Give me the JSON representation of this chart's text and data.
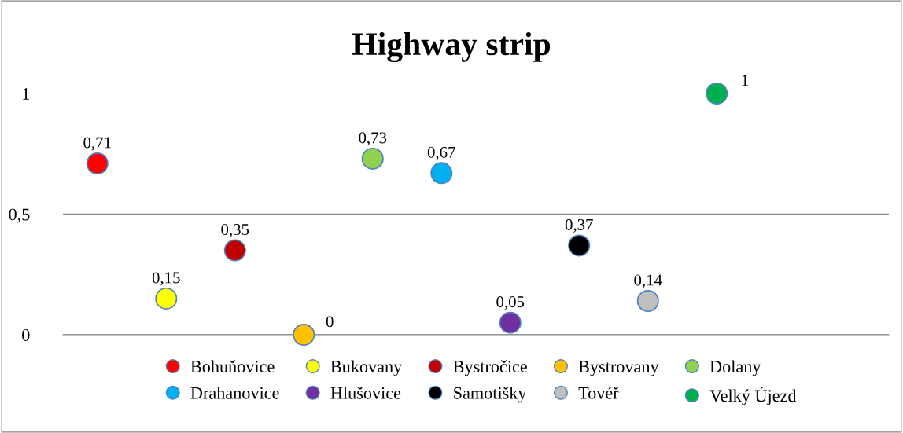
{
  "chart_data": {
    "type": "scatter",
    "title": "Highway strip",
    "categories": [
      null,
      null,
      null,
      null,
      null,
      null,
      null,
      null,
      null,
      null,
      null,
      null
    ],
    "ylim": [
      0,
      1
    ],
    "yticks": [
      0,
      {
        "value": 0.5,
        "label": "0,5"
      },
      1
    ],
    "grid": "y",
    "legend": "bottom",
    "marker": "circle",
    "tick_labels": "y",
    "series": [
      {
        "name": "Bohuňovice",
        "color": "#ff0000",
        "values": [
          0.71,
          null,
          null,
          null,
          null,
          null,
          null,
          null,
          null,
          null,
          null,
          null
        ],
        "value_labels": [
          "0,71",
          null,
          null,
          null,
          null,
          null,
          null,
          null,
          null,
          null,
          null,
          null
        ]
      },
      {
        "name": "Bukovany",
        "color": "#ffff00",
        "values": [
          null,
          0.15,
          null,
          null,
          null,
          null,
          null,
          null,
          null,
          null,
          null,
          null
        ],
        "value_labels": [
          null,
          "0,15",
          null,
          null,
          null,
          null,
          null,
          null,
          null,
          null,
          null,
          null
        ]
      },
      {
        "name": "Bystročice",
        "color": "#c00000",
        "values": [
          null,
          null,
          0.35,
          null,
          null,
          null,
          null,
          null,
          null,
          null,
          null,
          null
        ],
        "value_labels": [
          null,
          null,
          "0,35",
          null,
          null,
          null,
          null,
          null,
          null,
          null,
          null,
          null
        ]
      },
      {
        "name": "Bystrovany",
        "color": "#ffc000",
        "values": [
          null,
          null,
          null,
          0,
          null,
          null,
          null,
          null,
          null,
          null,
          null,
          null
        ],
        "value_labels": [
          null,
          null,
          null,
          "0",
          null,
          null,
          null,
          null,
          null,
          null,
          null,
          null
        ]
      },
      {
        "name": "Dolany",
        "color": "#92d050",
        "values": [
          null,
          null,
          null,
          null,
          0.73,
          null,
          null,
          null,
          null,
          null,
          null,
          null
        ],
        "value_labels": [
          null,
          null,
          null,
          null,
          "0,73",
          null,
          null,
          null,
          null,
          null,
          null,
          null
        ]
      },
      {
        "name": "Drahanovice",
        "color": "#00b0f0",
        "values": [
          null,
          null,
          null,
          null,
          null,
          0.67,
          null,
          null,
          null,
          null,
          null,
          null
        ],
        "value_labels": [
          null,
          null,
          null,
          null,
          null,
          "0,67",
          null,
          null,
          null,
          null,
          null,
          null
        ]
      },
      {
        "name": "Hlušovice",
        "color": "#7030a0",
        "values": [
          null,
          null,
          null,
          null,
          null,
          null,
          0.05,
          null,
          null,
          null,
          null,
          null
        ],
        "value_labels": [
          null,
          null,
          null,
          null,
          null,
          null,
          "0,05",
          null,
          null,
          null,
          null,
          null
        ]
      },
      {
        "name": "Samotišky",
        "color": "#000000",
        "values": [
          null,
          null,
          null,
          null,
          null,
          null,
          null,
          0.37,
          null,
          null,
          null,
          null
        ],
        "value_labels": [
          null,
          null,
          null,
          null,
          null,
          null,
          null,
          "0,37",
          null,
          null,
          null,
          null
        ]
      },
      {
        "name": "Tovéř",
        "color": "#bfbfbf",
        "values": [
          null,
          null,
          null,
          null,
          null,
          null,
          null,
          null,
          0.14,
          null,
          null,
          null
        ],
        "value_labels": [
          null,
          null,
          null,
          null,
          null,
          null,
          null,
          null,
          "0,14",
          null,
          null,
          null
        ]
      },
      {
        "name": "Velký Újezd",
        "color": "#00b050",
        "values": [
          null,
          null,
          null,
          null,
          null,
          null,
          null,
          null,
          null,
          1,
          null,
          null
        ],
        "value_labels": [
          null,
          null,
          null,
          null,
          null,
          null,
          null,
          null,
          null,
          "1",
          null,
          null
        ]
      }
    ]
  }
}
